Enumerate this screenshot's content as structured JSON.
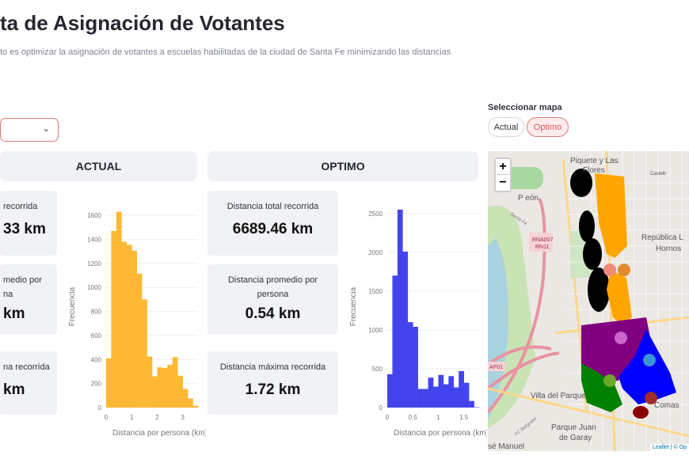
{
  "header": {
    "title": "ta de Asignación de Votantes",
    "subtitle": "to es optimizar la asignación de votantes a escuelas habilitadas de la ciudad de Santa Fe minimizando las distancias"
  },
  "dropdown": {
    "chevron": "chevron-down-icon",
    "symbol": "⌄"
  },
  "sections": {
    "actual": "ACTUAL",
    "optimo": "OPTIMO"
  },
  "actual_cards": [
    {
      "label": "recorrida",
      "value": "33 km"
    },
    {
      "label": "medio por",
      "label2": "na",
      "value": "km"
    },
    {
      "label": "na recorrida",
      "value": "km"
    }
  ],
  "optimo_cards": [
    {
      "label": "Distancia total recorrida",
      "value": "6689.46 km"
    },
    {
      "label": "Distancia promedio por",
      "label2": "persona",
      "value": "0.54 km"
    },
    {
      "label": "Distancia máxima recorrida",
      "value": "1.72 km"
    }
  ],
  "map_selector": {
    "label": "Seleccionar mapa",
    "options": [
      "Actual",
      "Optimo"
    ],
    "selected": "Optimo",
    "accent": "#ff4b4b"
  },
  "map": {
    "zoom_in": "+",
    "zoom_out": "−",
    "attribution": "Leaflet | © Op",
    "place_labels": [
      "Piquete y Las",
      "Flores",
      "P    eón",
      "Castelli",
      "Santa Fe",
      "RNA007",
      "RN11",
      "República L",
      "Hornos",
      "AP01",
      "Villa del Parque",
      "Comas",
      "Parque Juan",
      "de Garay",
      "sé Manuel",
      "FC Belgrano"
    ],
    "cluster_colors": [
      "#000000",
      "#ffa500",
      "#800080",
      "#0000ff",
      "#008000",
      "#8b0000"
    ]
  },
  "chart_data": [
    {
      "type": "bar",
      "xlabel": "Distancia por persona (km)",
      "ylabel": "Frecuencia",
      "color": "#ffb833",
      "bin_width": 0.2,
      "bin_start": 0,
      "values": [
        410,
        1470,
        1630,
        1380,
        1355,
        1305,
        1115,
        900,
        425,
        260,
        335,
        330,
        355,
        420,
        265,
        155,
        75,
        15
      ],
      "xlim": [
        0,
        3.6
      ],
      "ylim": [
        0,
        1680
      ],
      "xticks": [
        0,
        1,
        2,
        3
      ],
      "yticks": [
        0,
        200,
        400,
        600,
        800,
        1000,
        1200,
        1400,
        1600
      ],
      "grid": true
    },
    {
      "type": "bar",
      "xlabel": "Distancia por persona (km)",
      "ylabel": "Frecuencia",
      "color": "#4444ee",
      "bin_width": 0.1,
      "bin_start": 0,
      "values": [
        430,
        1700,
        2550,
        2010,
        1100,
        1040,
        240,
        240,
        385,
        270,
        420,
        300,
        405,
        260,
        470,
        320,
        85,
        5
      ],
      "xlim": [
        0,
        1.8
      ],
      "ylim": [
        0,
        2600
      ],
      "xticks": [
        0,
        0.5,
        1,
        1.5
      ],
      "yticks": [
        0,
        500,
        1000,
        1500,
        2000,
        2500
      ],
      "grid": true
    }
  ]
}
